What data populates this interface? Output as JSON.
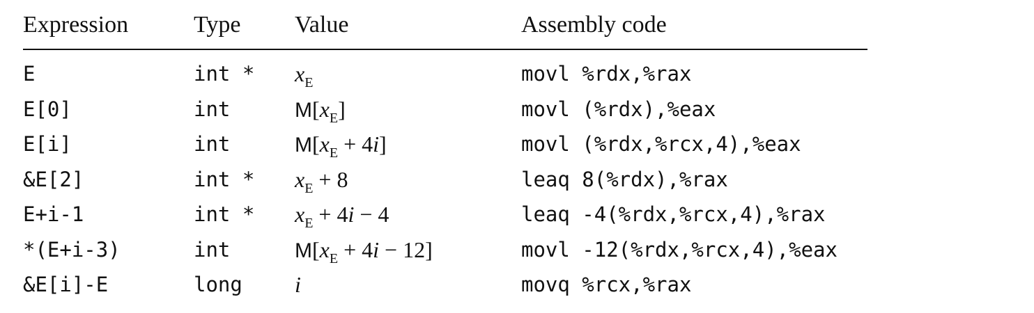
{
  "headers": {
    "expression": "Expression",
    "type": "Type",
    "value": "Value",
    "assembly": "Assembly code"
  },
  "rows": [
    {
      "expression": "E",
      "type": "int *",
      "value_parts": [
        [
          "x",
          "it"
        ],
        [
          "E",
          "sub"
        ]
      ],
      "assembly": "movl %rdx,%rax"
    },
    {
      "expression": "E[0]",
      "type": "int",
      "value_parts": [
        [
          "M",
          "M"
        ],
        [
          "[",
          ""
        ],
        [
          "x",
          "it"
        ],
        [
          "E",
          "sub"
        ],
        [
          "]",
          ""
        ]
      ],
      "assembly": "movl (%rdx),%eax"
    },
    {
      "expression": "E[i]",
      "type": "int",
      "value_parts": [
        [
          "M",
          "M"
        ],
        [
          "[",
          ""
        ],
        [
          "x",
          "it"
        ],
        [
          "E",
          "sub"
        ],
        [
          " + 4",
          ""
        ],
        [
          "i",
          "it"
        ],
        [
          "]",
          ""
        ]
      ],
      "assembly": "movl (%rdx,%rcx,4),%eax"
    },
    {
      "expression": "&E[2]",
      "type": "int *",
      "value_parts": [
        [
          "x",
          "it"
        ],
        [
          "E",
          "sub"
        ],
        [
          " + 8",
          ""
        ]
      ],
      "assembly": "leaq 8(%rdx),%rax"
    },
    {
      "expression": "E+i-1",
      "type": "int *",
      "value_parts": [
        [
          "x",
          "it"
        ],
        [
          "E",
          "sub"
        ],
        [
          " + 4",
          ""
        ],
        [
          "i",
          "it"
        ],
        [
          " − 4",
          ""
        ]
      ],
      "assembly": "leaq -4(%rdx,%rcx,4),%rax"
    },
    {
      "expression": "*(E+i-3)",
      "type": "int",
      "value_parts": [
        [
          "M",
          "M"
        ],
        [
          "[",
          ""
        ],
        [
          "x",
          "it"
        ],
        [
          "E",
          "sub"
        ],
        [
          " + 4",
          ""
        ],
        [
          "i",
          "it"
        ],
        [
          " − 12",
          ""
        ],
        [
          "]",
          ""
        ]
      ],
      "assembly": "movl -12(%rdx,%rcx,4),%eax"
    },
    {
      "expression": "&E[i]-E",
      "type": "long",
      "value_parts": [
        [
          "i",
          "it"
        ]
      ],
      "assembly": "movq %rcx,%rax"
    }
  ]
}
